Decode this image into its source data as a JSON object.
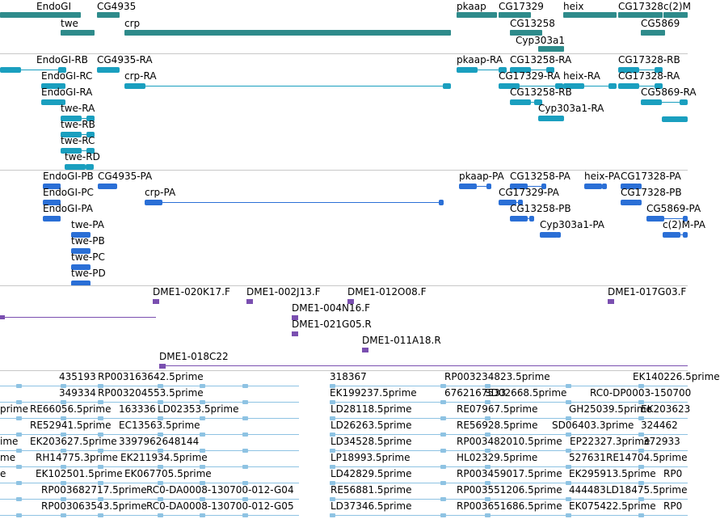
{
  "colors": {
    "gene": "#2e8b8b",
    "transcript": "#1a9fbf",
    "protein": "#2a6fd6",
    "clone": "#7a4fb0",
    "est": "#8ec3e3",
    "separator": "#c8c8c8"
  },
  "tracks": {
    "genes": [
      "EndoGI",
      "twe",
      "CG4935",
      "crp",
      "pkaap",
      "CG17329",
      "CG13258",
      "Cyp303a1",
      "heix",
      "CG17328",
      "c(2)M",
      "CG5869"
    ],
    "transcripts": [
      "EndoGI-RB",
      "EndoGI-RC",
      "EndoGI-RA",
      "twe-RA",
      "twe-RB",
      "twe-RC",
      "twe-RD",
      "CG4935-RA",
      "crp-RA",
      "pkaap-RA",
      "CG13258-RA",
      "CG17329-RA",
      "heix-RA",
      "CG13258-RB",
      "Cyp303a1-RA",
      "CG17328-RB",
      "CG17328-RA",
      "CG5869-RA"
    ],
    "proteins": [
      "EndoGI-PB",
      "EndoGI-PC",
      "EndoGI-PA",
      "twe-PA",
      "twe-PB",
      "twe-PC",
      "twe-PD",
      "CG4935-PA",
      "crp-PA",
      "pkaap-PA",
      "CG13258-PA",
      "CG17329-PA",
      "CG13258-PB",
      "Cyp303a1-PA",
      "heix-PA",
      "CG17328-PA",
      "CG17328-PB",
      "CG5869-PA",
      "c(2)M-PA"
    ],
    "clones": [
      "DME1-020K17.F",
      "DME1-002J13.F",
      "DME1-012O08.F",
      "DME1-017G03.F",
      "DME1-004N16.F",
      "DME1-021G05.R",
      "DME1-011A18.R",
      "DME1-018C22"
    ],
    "ests": [
      "435193",
      "RP003163642.5prime",
      "349334",
      "RP003204553.5prime",
      "RE66056.5prime",
      "163336",
      "LD02353.5prime",
      "RE52941.5prime",
      "EC13563.5prime",
      "EK203627.5prime",
      "3397962648144",
      "RH14775.3prime",
      "EK211934.5prime",
      "EK102501.5prime",
      "EK067705.5prime",
      "RP003682717.5prime",
      "RC0-DA0008-130700-012-G04",
      "RP003063543.5prime",
      "RC0-DA0008-130700-012-G05",
      "318367",
      "RP003234823.5prime",
      "EK140226.5prime",
      "EK199237.5prime",
      "6762167533",
      "SD02668.5prime",
      "RC0-DP0003-150700",
      "LD28118.5prime",
      "RE07967.5prime",
      "GH25039.5prime",
      "EK203623",
      "LD26263.5prime",
      "RE56928.5prime",
      "SD06403.3prime",
      "324462",
      "LD34528.5prime",
      "RP003482010.5prime",
      "EP22327.3prime",
      "372933",
      "LP18993.5prime",
      "HL02329.5prime",
      "527631",
      "RE14704.5prime",
      "LD42829.5prime",
      "RP003459017.5prime",
      "EK295913.5prime",
      "RP0",
      "RE56881.5prime",
      "RP003551206.5prime",
      "444483",
      "LD18475.5prime",
      "LD37346.5prime",
      "RP003651686.5prime",
      "EK075422.5prime",
      "RP0",
      "prime",
      "ime",
      "me",
      "e"
    ]
  }
}
